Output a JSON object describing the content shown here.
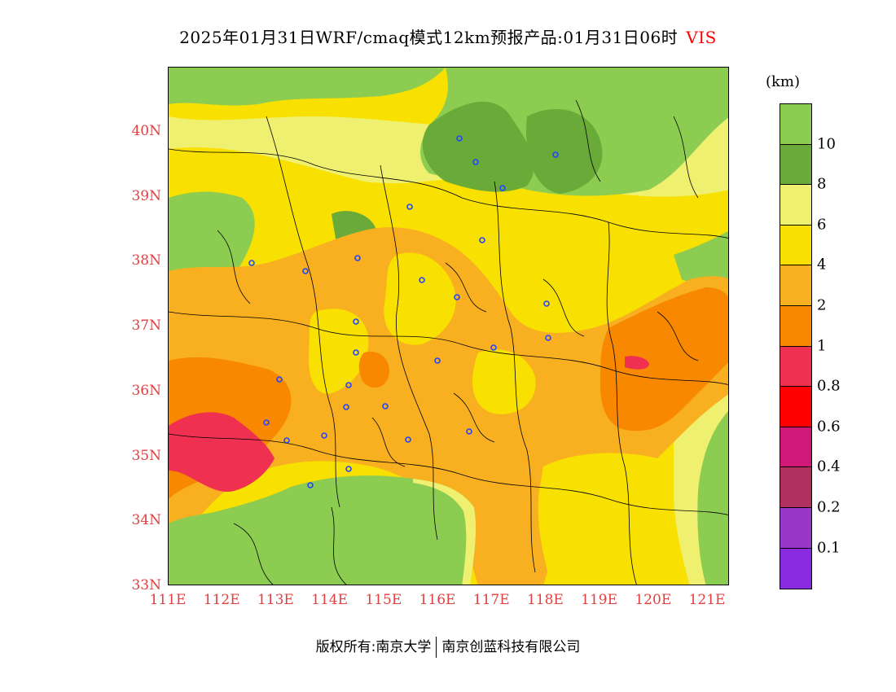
{
  "header": {
    "title": "2025年01月31日WRF/cmaq模式12km预报产品:01月31日06时",
    "variable": "VIS"
  },
  "map": {
    "lat_labels": [
      "40N",
      "39N",
      "38N",
      "37N",
      "36N",
      "35N",
      "34N",
      "33N"
    ],
    "lon_labels": [
      "111E",
      "112E",
      "113E",
      "114E",
      "115E",
      "116E",
      "117E",
      "118E",
      "119E",
      "120E",
      "121E"
    ],
    "lat_range": [
      33,
      41
    ],
    "lon_range": [
      111,
      121.4
    ],
    "station_marker_color": "#2244ff"
  },
  "colorbar": {
    "unit": "(km)",
    "tick_labels": [
      "10",
      "8",
      "6",
      "4",
      "2",
      "1",
      "0.8",
      "0.6",
      "0.4",
      "0.2",
      "0.1"
    ],
    "colors": [
      "#8ccc50",
      "#6aaa38",
      "#f0f070",
      "#f8e000",
      "#f8b020",
      "#f88800",
      "#f03050",
      "#ff0000",
      "#d01878",
      "#b03060",
      "#9838c8",
      "#8a2be2"
    ]
  },
  "footer": {
    "copyright": "版权所有:南京大学",
    "company": "南京创蓝科技有限公司"
  }
}
